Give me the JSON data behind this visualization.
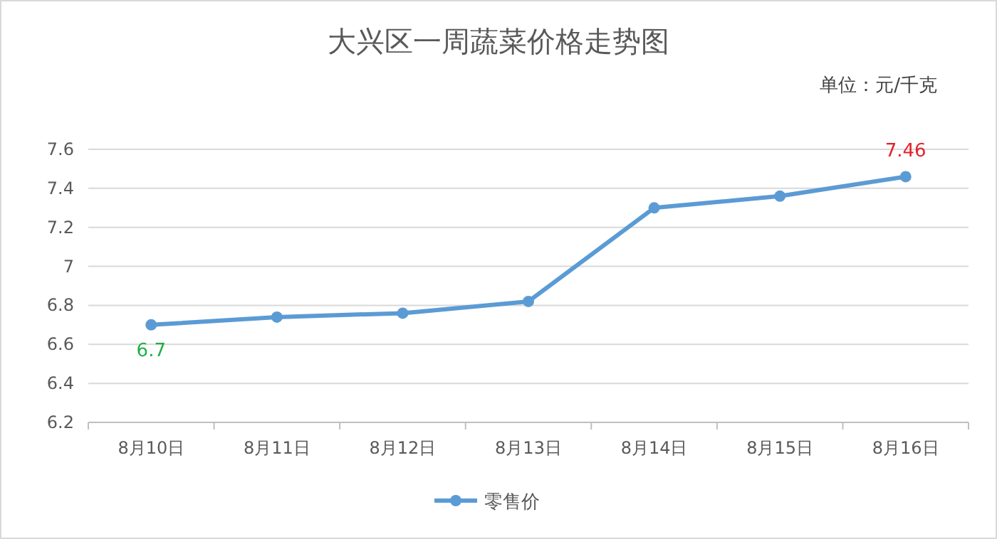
{
  "chart_data": {
    "type": "line",
    "title": "大兴区一周蔬菜价格走势图",
    "subtitle": "单位：元/千克",
    "categories": [
      "8月10日",
      "8月11日",
      "8月12日",
      "8月13日",
      "8月14日",
      "8月15日",
      "8月16日"
    ],
    "series": [
      {
        "name": "零售价",
        "color": "#5b9bd5",
        "values": [
          6.7,
          6.74,
          6.76,
          6.82,
          7.3,
          7.36,
          7.46
        ],
        "value_labels": [
          "6.7",
          null,
          null,
          null,
          null,
          null,
          "7.46"
        ]
      }
    ],
    "ylim": [
      6.2,
      7.6
    ],
    "yticks": [
      6.2,
      6.4,
      6.6,
      6.8,
      7,
      7.2,
      7.4,
      7.6
    ],
    "grid": "y",
    "legend": "bottom",
    "marker": "circle",
    "line_style": "solid"
  }
}
